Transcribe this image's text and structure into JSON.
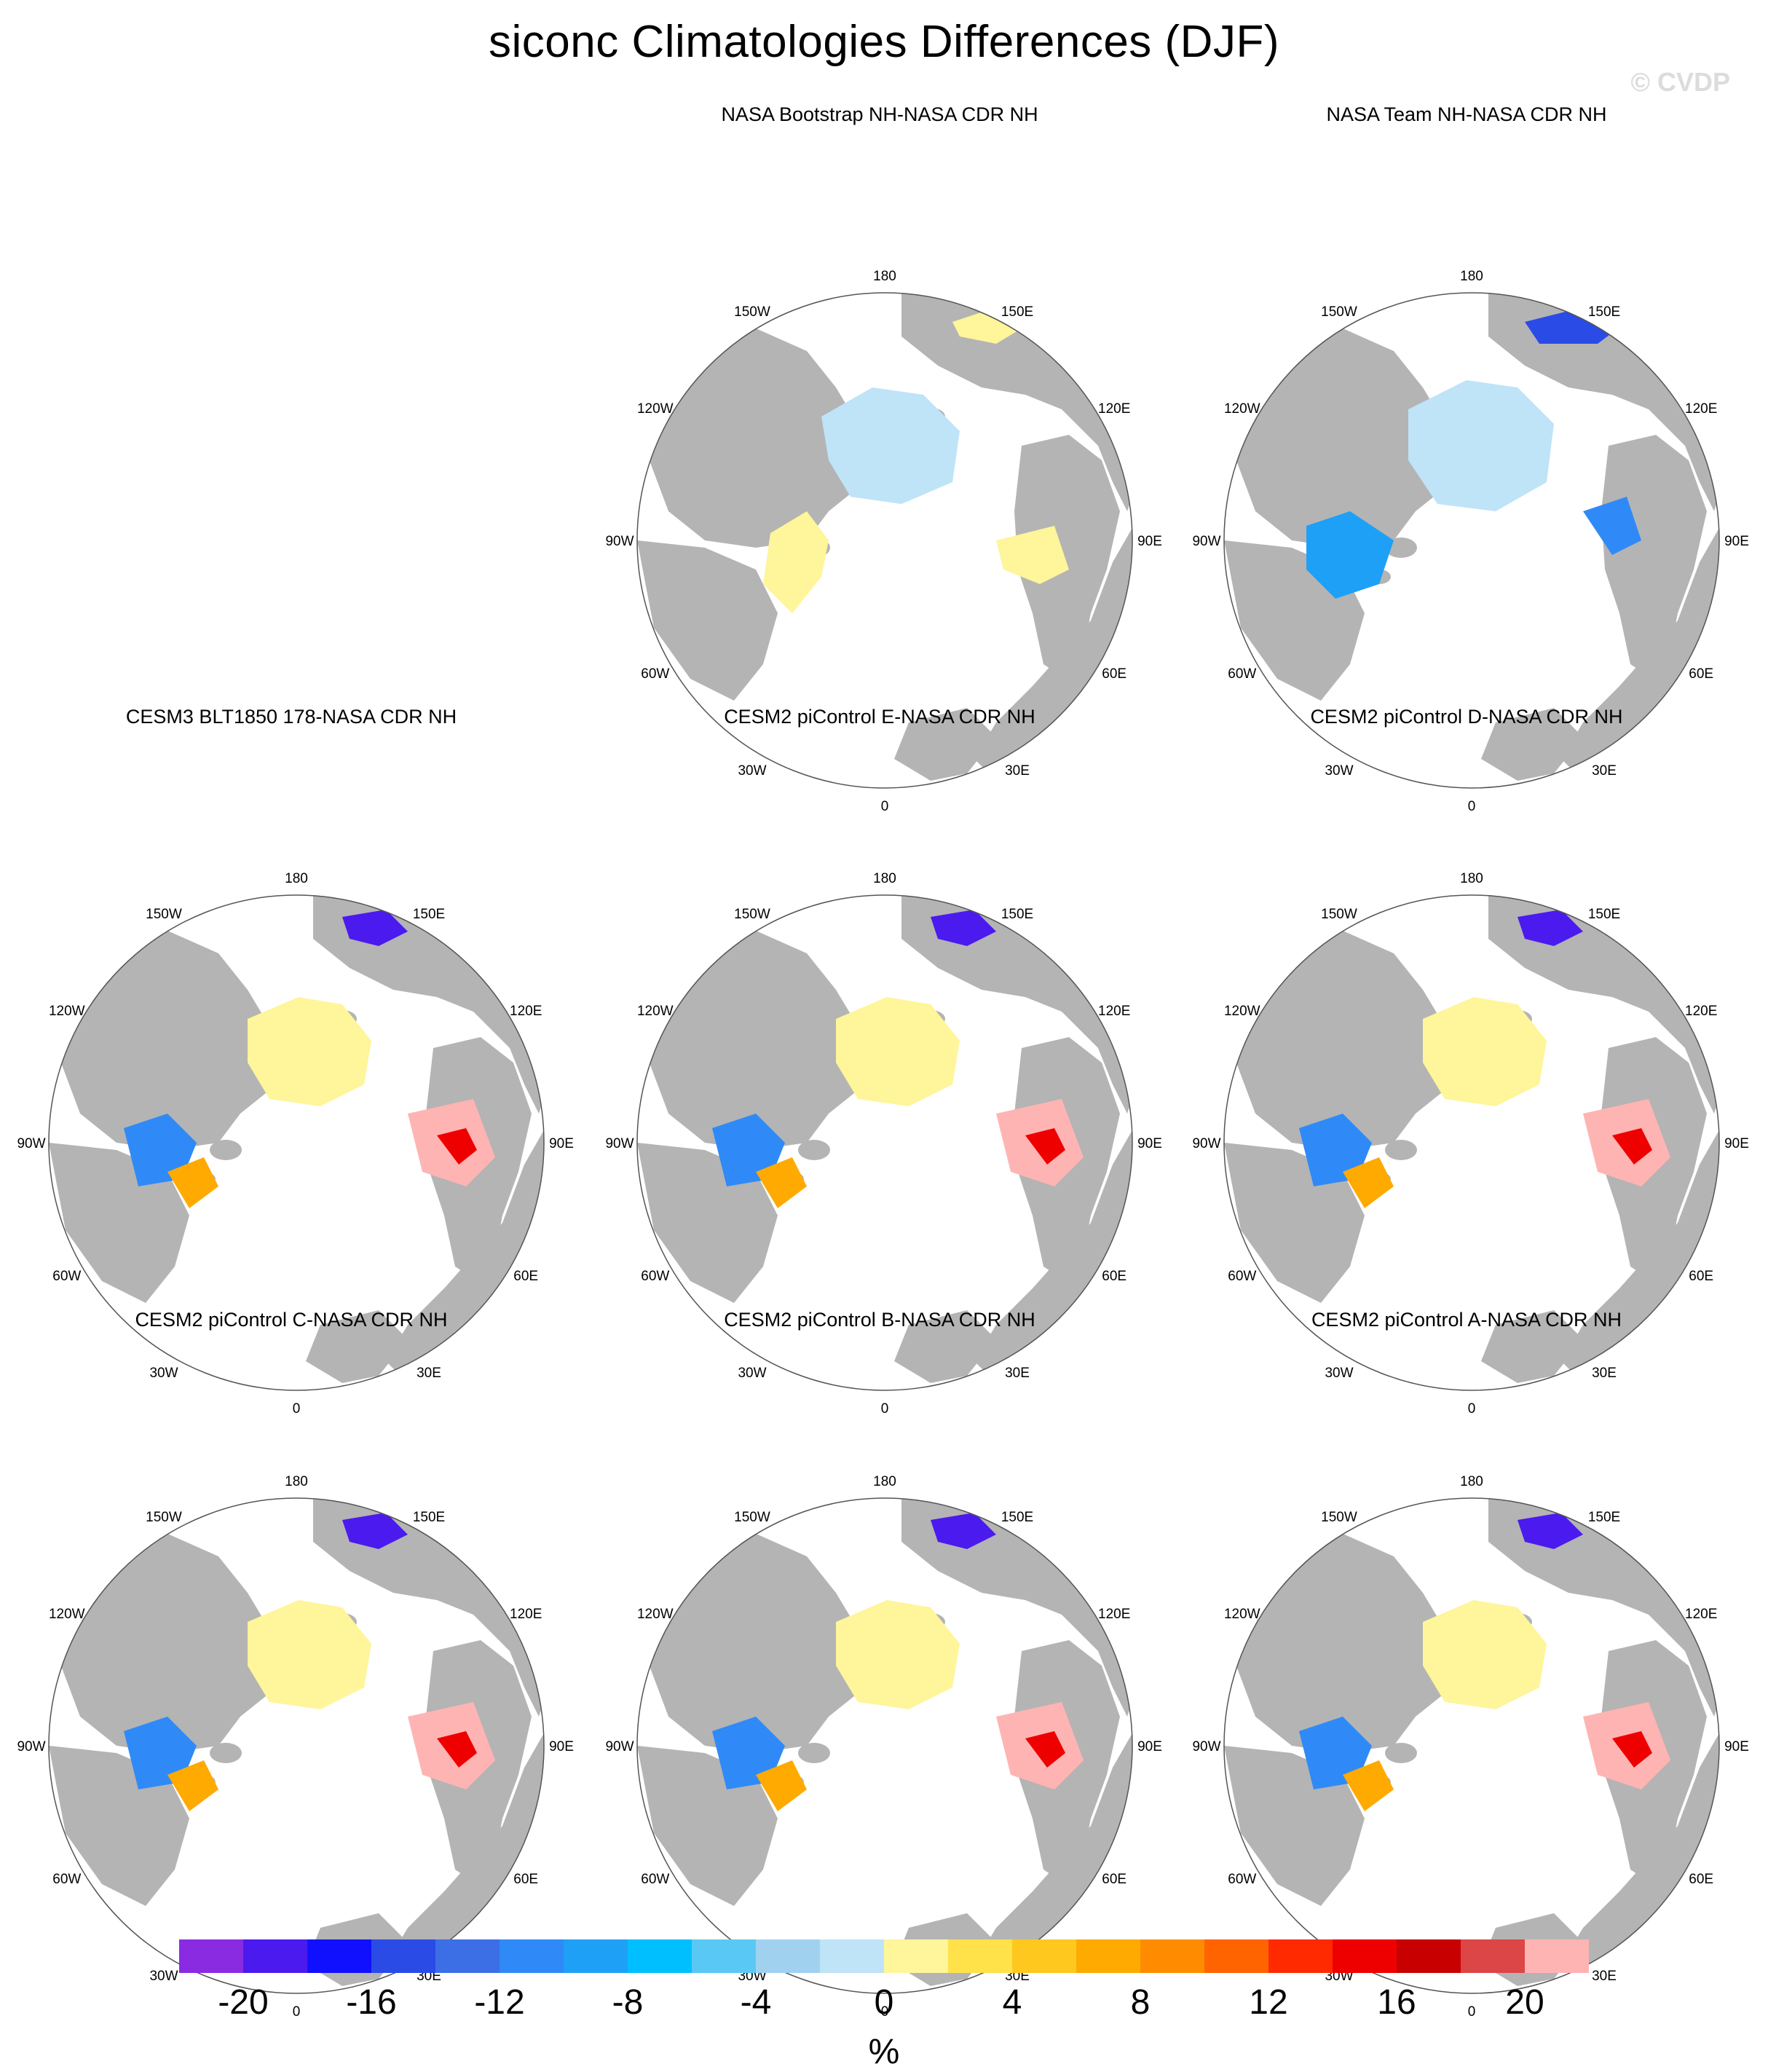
{
  "title": "siconc Climatologies Differences (DJF)",
  "watermark": "© CVDP",
  "colors": {
    "land": "#b4b4b4",
    "ocean": "#ffffff",
    "outline": "#555555"
  },
  "lon_labels": [
    "180",
    "150E",
    "120E",
    "90E",
    "60E",
    "30E",
    "0",
    "30W",
    "60W",
    "90W",
    "120W",
    "150W"
  ],
  "panels": [
    {
      "title": "NASA Bootstrap NH-NASA CDR NH",
      "pattern": "bootstrap"
    },
    {
      "title": "NASA Team NH-NASA CDR NH",
      "pattern": "team"
    },
    {
      "title": "CESM3 BLT1850 178-NASA CDR NH",
      "pattern": "model"
    },
    {
      "title": "CESM2 piControl E-NASA CDR NH",
      "pattern": "model"
    },
    {
      "title": "CESM2 piControl D-NASA CDR NH",
      "pattern": "model"
    },
    {
      "title": "CESM2 piControl C-NASA CDR NH",
      "pattern": "model"
    },
    {
      "title": "CESM2 piControl B-NASA CDR NH",
      "pattern": "model"
    },
    {
      "title": "CESM2 piControl A-NASA CDR NH",
      "pattern": "model"
    }
  ],
  "colorbar": {
    "units": "%",
    "bounds": [
      -22,
      22
    ],
    "tick_labels": [
      "-20",
      "-16",
      "-12",
      "-8",
      "-4",
      "0",
      "4",
      "8",
      "12",
      "16",
      "20"
    ],
    "tick_values": [
      -20,
      -16,
      -12,
      -8,
      -4,
      0,
      4,
      8,
      12,
      16,
      20
    ],
    "colors": [
      "#8a2be2",
      "#4b1aee",
      "#1010ff",
      "#2a4be6",
      "#3c6ee6",
      "#2f8af7",
      "#1ea0f7",
      "#00bfff",
      "#5ac8f5",
      "#a0d2f0",
      "#bfe3f7",
      "#fff59a",
      "#ffe14a",
      "#ffc81e",
      "#ffaa00",
      "#ff8c00",
      "#ff6400",
      "#ff2a00",
      "#ee0000",
      "#c80000",
      "#dc4646",
      "#ffb4b4"
    ]
  }
}
